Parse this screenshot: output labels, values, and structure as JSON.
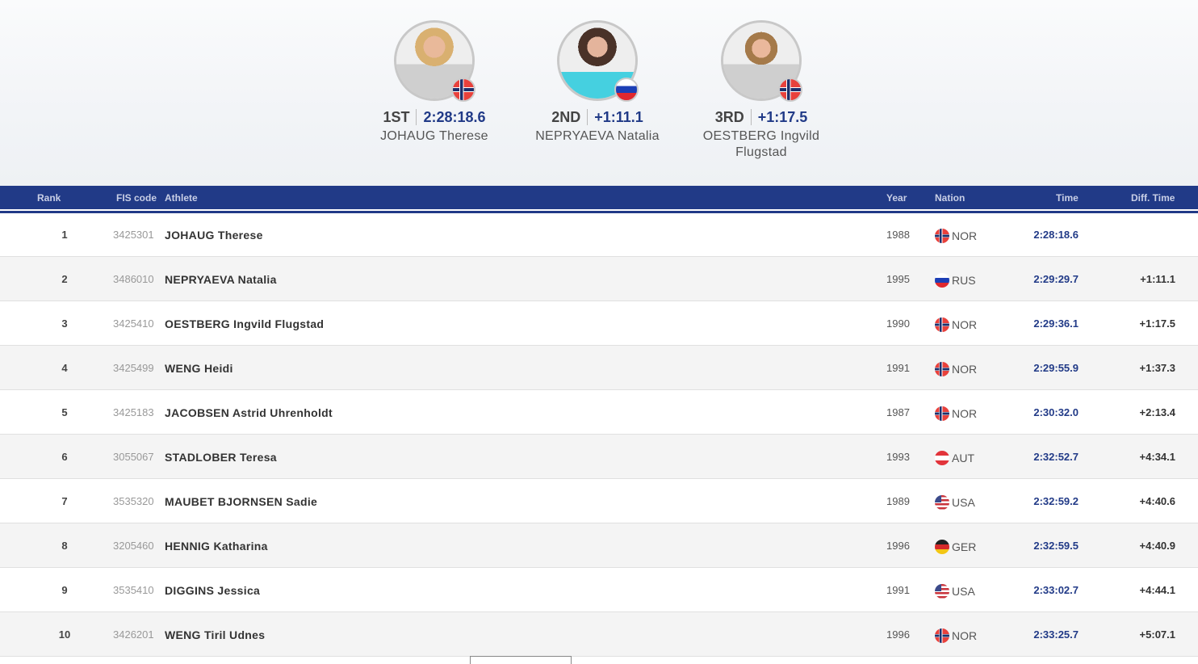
{
  "colors": {
    "brand": "#213a87"
  },
  "podium": [
    {
      "place": "1ST",
      "time": "2:28:18.6",
      "name": "JOHAUG Therese",
      "flag": "nor",
      "photo": "blonde-woman-grey-jacket"
    },
    {
      "place": "2ND",
      "time": "+1:11.1",
      "name": "NEPRYAEVA Natalia",
      "flag": "rus",
      "photo": "brunette-woman-cyan-shirt"
    },
    {
      "place": "3RD",
      "time": "+1:17.5",
      "name": "OESTBERG Ingvild Flugstad",
      "flag": "nor",
      "photo": "woman-grey-jacket"
    }
  ],
  "table": {
    "headers": {
      "rank": "Rank",
      "fis": "FIS code",
      "athlete": "Athlete",
      "year": "Year",
      "nation": "Nation",
      "time": "Time",
      "diff": "Diff. Time"
    },
    "rows": [
      {
        "rank": "1",
        "fis": "3425301",
        "athlete": "JOHAUG Therese",
        "year": "1988",
        "nation": "NOR",
        "flag": "nor",
        "time": "2:28:18.6",
        "diff": ""
      },
      {
        "rank": "2",
        "fis": "3486010",
        "athlete": "NEPRYAEVA Natalia",
        "year": "1995",
        "nation": "RUS",
        "flag": "rus",
        "time": "2:29:29.7",
        "diff": "+1:11.1"
      },
      {
        "rank": "3",
        "fis": "3425410",
        "athlete": "OESTBERG Ingvild Flugstad",
        "year": "1990",
        "nation": "NOR",
        "flag": "nor",
        "time": "2:29:36.1",
        "diff": "+1:17.5"
      },
      {
        "rank": "4",
        "fis": "3425499",
        "athlete": "WENG Heidi",
        "year": "1991",
        "nation": "NOR",
        "flag": "nor",
        "time": "2:29:55.9",
        "diff": "+1:37.3"
      },
      {
        "rank": "5",
        "fis": "3425183",
        "athlete": "JACOBSEN Astrid Uhrenholdt",
        "year": "1987",
        "nation": "NOR",
        "flag": "nor",
        "time": "2:30:32.0",
        "diff": "+2:13.4"
      },
      {
        "rank": "6",
        "fis": "3055067",
        "athlete": "STADLOBER Teresa",
        "year": "1993",
        "nation": "AUT",
        "flag": "aut",
        "time": "2:32:52.7",
        "diff": "+4:34.1"
      },
      {
        "rank": "7",
        "fis": "3535320",
        "athlete": "MAUBET BJORNSEN Sadie",
        "year": "1989",
        "nation": "USA",
        "flag": "usa",
        "time": "2:32:59.2",
        "diff": "+4:40.6"
      },
      {
        "rank": "8",
        "fis": "3205460",
        "athlete": "HENNIG Katharina",
        "year": "1996",
        "nation": "GER",
        "flag": "ger",
        "time": "2:32:59.5",
        "diff": "+4:40.9"
      },
      {
        "rank": "9",
        "fis": "3535410",
        "athlete": "DIGGINS Jessica",
        "year": "1991",
        "nation": "USA",
        "flag": "usa",
        "time": "2:33:02.7",
        "diff": "+4:44.1"
      },
      {
        "rank": "10",
        "fis": "3426201",
        "athlete": "WENG Tiril Udnes",
        "year": "1996",
        "nation": "NOR",
        "flag": "nor",
        "time": "2:33:25.7",
        "diff": "+5:07.1"
      }
    ]
  }
}
